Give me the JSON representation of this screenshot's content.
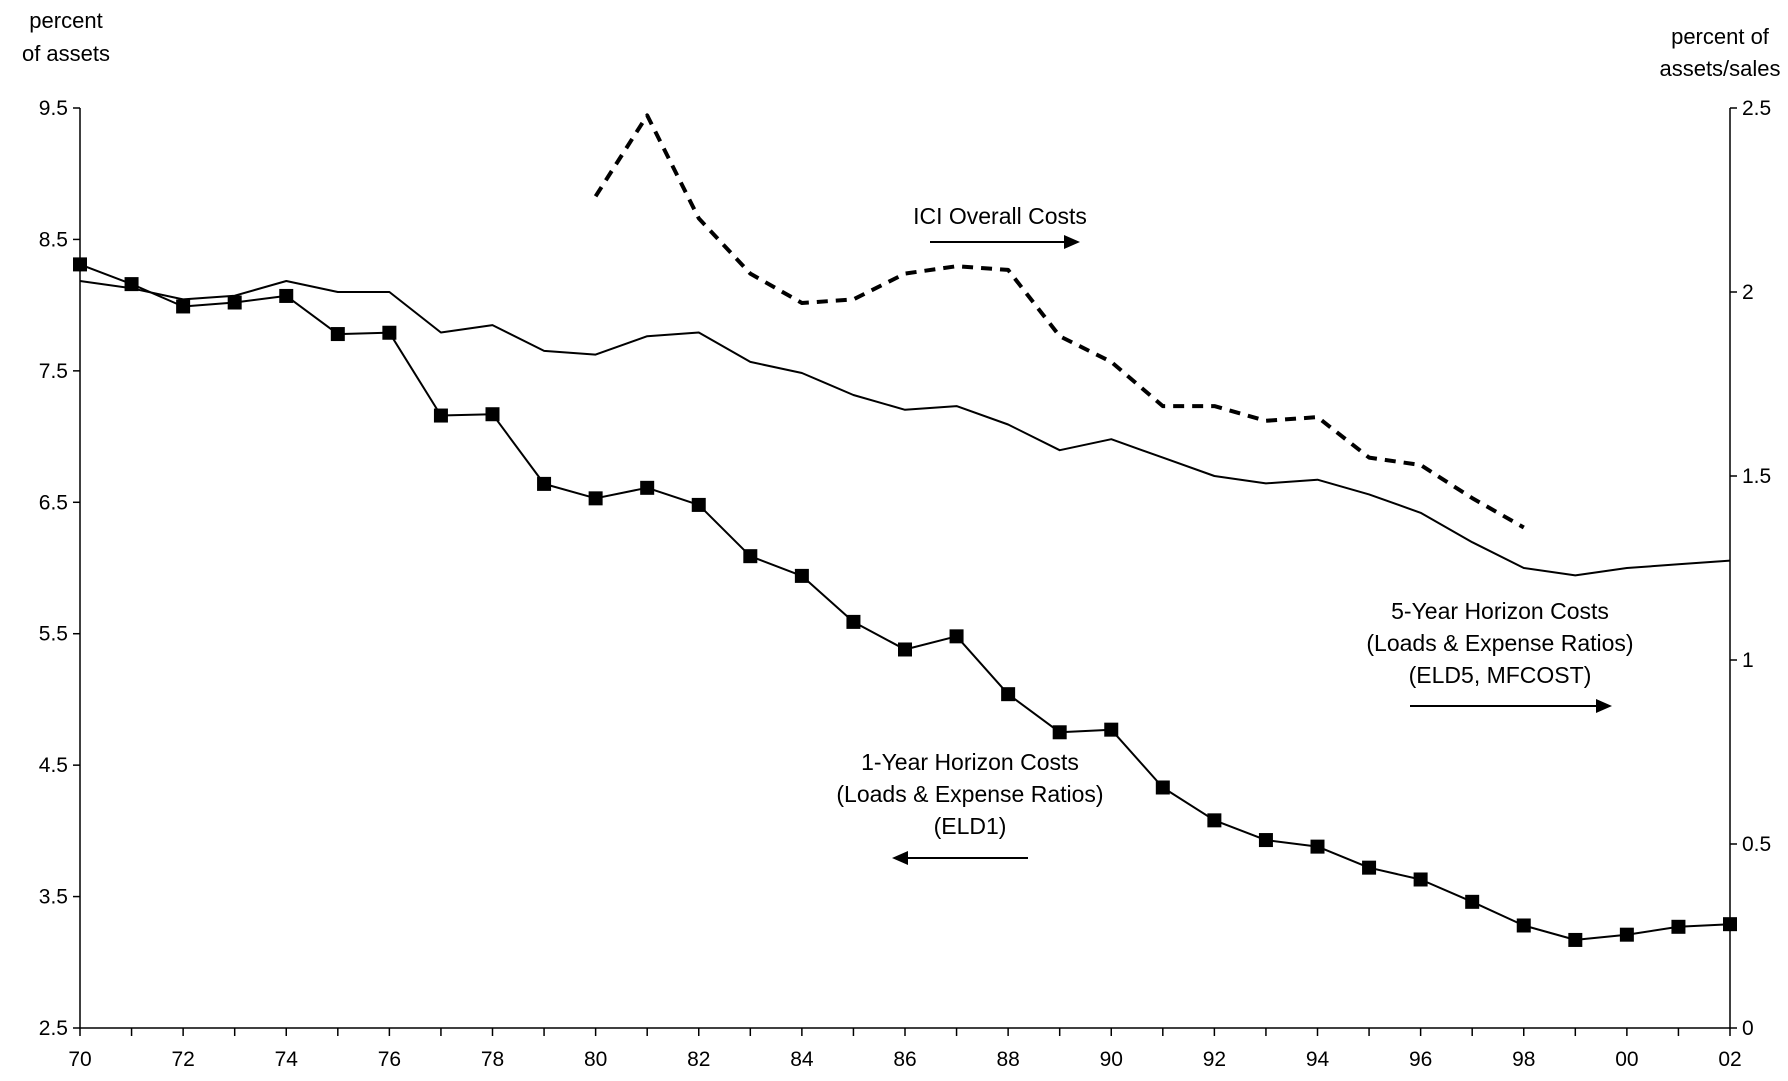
{
  "chart_data": {
    "type": "line",
    "left_axis": {
      "title_lines": [
        "percent",
        "of assets"
      ],
      "ylim": [
        2.5,
        9.5
      ],
      "ticks": [
        2.5,
        3.5,
        4.5,
        5.5,
        6.5,
        7.5,
        8.5,
        9.5
      ],
      "tick_labels": [
        "2.5",
        "3.5",
        "4.5",
        "5.5",
        "6.5",
        "7.5",
        "8.5",
        "9.5"
      ]
    },
    "right_axis": {
      "title_lines": [
        "percent of",
        "assets/sales"
      ],
      "ylim": [
        0,
        2.5
      ],
      "ticks": [
        0,
        0.5,
        1,
        1.5,
        2,
        2.5
      ],
      "tick_labels": [
        "0",
        "0.5",
        "1",
        "1.5",
        "2",
        "2.5"
      ]
    },
    "x_axis": {
      "xlim": [
        1970,
        2002
      ],
      "tick_years": [
        1970,
        1972,
        1974,
        1976,
        1978,
        1980,
        1982,
        1984,
        1986,
        1988,
        1990,
        1992,
        1994,
        1996,
        1998,
        2000,
        2002
      ],
      "tick_labels": [
        "70",
        "72",
        "74",
        "76",
        "78",
        "80",
        "82",
        "84",
        "86",
        "88",
        "90",
        "92",
        "94",
        "96",
        "98",
        "00",
        "02"
      ]
    },
    "x": [
      1970,
      1971,
      1972,
      1973,
      1974,
      1975,
      1976,
      1977,
      1978,
      1979,
      1980,
      1981,
      1982,
      1983,
      1984,
      1985,
      1986,
      1987,
      1988,
      1989,
      1990,
      1991,
      1992,
      1993,
      1994,
      1995,
      1996,
      1997,
      1998,
      1999,
      2000,
      2001,
      2002
    ],
    "series": [
      {
        "key": "eld1",
        "axis": "left",
        "style": "solid-square-markers",
        "values": [
          8.31,
          8.16,
          7.99,
          8.02,
          8.07,
          7.78,
          7.79,
          7.16,
          7.17,
          6.64,
          6.53,
          6.61,
          6.48,
          6.09,
          5.94,
          5.59,
          5.38,
          5.48,
          5.04,
          4.75,
          4.77,
          4.33,
          4.08,
          3.93,
          3.88,
          3.72,
          3.63,
          3.46,
          3.28,
          3.17,
          3.21,
          3.27,
          3.29
        ]
      },
      {
        "key": "eld5",
        "axis": "right",
        "style": "solid",
        "values": [
          2.03,
          2.01,
          1.98,
          1.99,
          2.03,
          2.0,
          2.0,
          1.89,
          1.91,
          1.84,
          1.83,
          1.88,
          1.89,
          1.81,
          1.78,
          1.72,
          1.68,
          1.69,
          1.64,
          1.57,
          1.6,
          1.55,
          1.5,
          1.48,
          1.49,
          1.45,
          1.4,
          1.32,
          1.25,
          1.23,
          1.25,
          1.26,
          1.27
        ]
      },
      {
        "key": "ici",
        "axis": "right",
        "style": "dashed",
        "x": [
          1980,
          1981,
          1982,
          1983,
          1984,
          1985,
          1986,
          1987,
          1988,
          1989,
          1990,
          1991,
          1992,
          1993,
          1994,
          1995,
          1996,
          1997,
          1998
        ],
        "values": [
          2.26,
          2.48,
          2.2,
          2.05,
          1.97,
          1.98,
          2.05,
          2.07,
          2.06,
          1.88,
          1.81,
          1.69,
          1.69,
          1.65,
          1.66,
          1.55,
          1.53,
          1.44,
          1.36
        ]
      }
    ],
    "annotations": {
      "ici": {
        "lines": [
          "ICI Overall Costs"
        ],
        "arrow": "right"
      },
      "eld5": {
        "lines": [
          "5-Year Horizon Costs",
          "(Loads & Expense Ratios)",
          "(ELD5, MFCOST)"
        ],
        "arrow": "right"
      },
      "eld1": {
        "lines": [
          "1-Year Horizon Costs",
          "(Loads & Expense Ratios)",
          "(ELD1)"
        ],
        "arrow": "left"
      }
    },
    "grid": false,
    "legend": "none"
  }
}
